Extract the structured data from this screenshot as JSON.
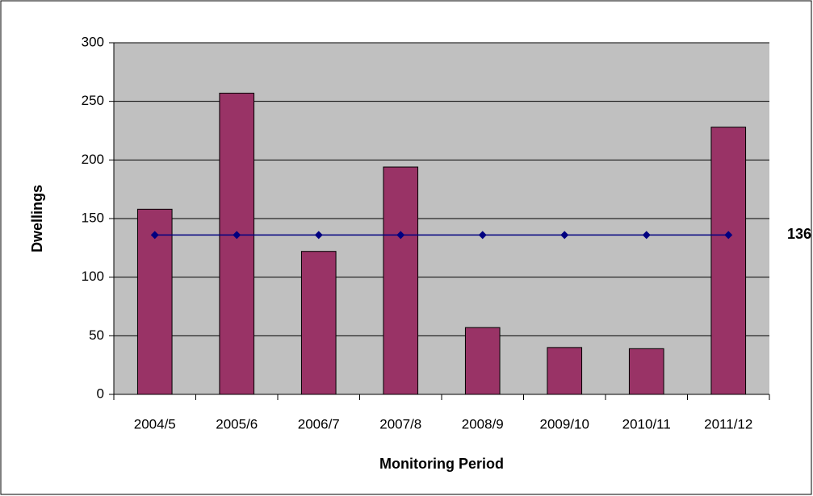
{
  "chart_data": {
    "type": "bar",
    "x_label": "Monitoring Period",
    "y_label": "Dwellings",
    "categories": [
      "2004/5",
      "2005/6",
      "2006/7",
      "2007/8",
      "2008/9",
      "2009/10",
      "2010/11",
      "2011/12"
    ],
    "series": [
      {
        "type": "bar",
        "color": "#993366",
        "values": [
          158,
          257,
          122,
          194,
          57,
          40,
          39,
          228
        ]
      },
      {
        "type": "line",
        "color": "#000080",
        "values": [
          136,
          136,
          136,
          136,
          136,
          136,
          136,
          136
        ]
      }
    ],
    "ylim": [
      0,
      300
    ],
    "yticks": [
      0,
      50,
      100,
      150,
      200,
      250,
      300
    ],
    "grid": true,
    "plot_background": "#c0c0c0"
  }
}
